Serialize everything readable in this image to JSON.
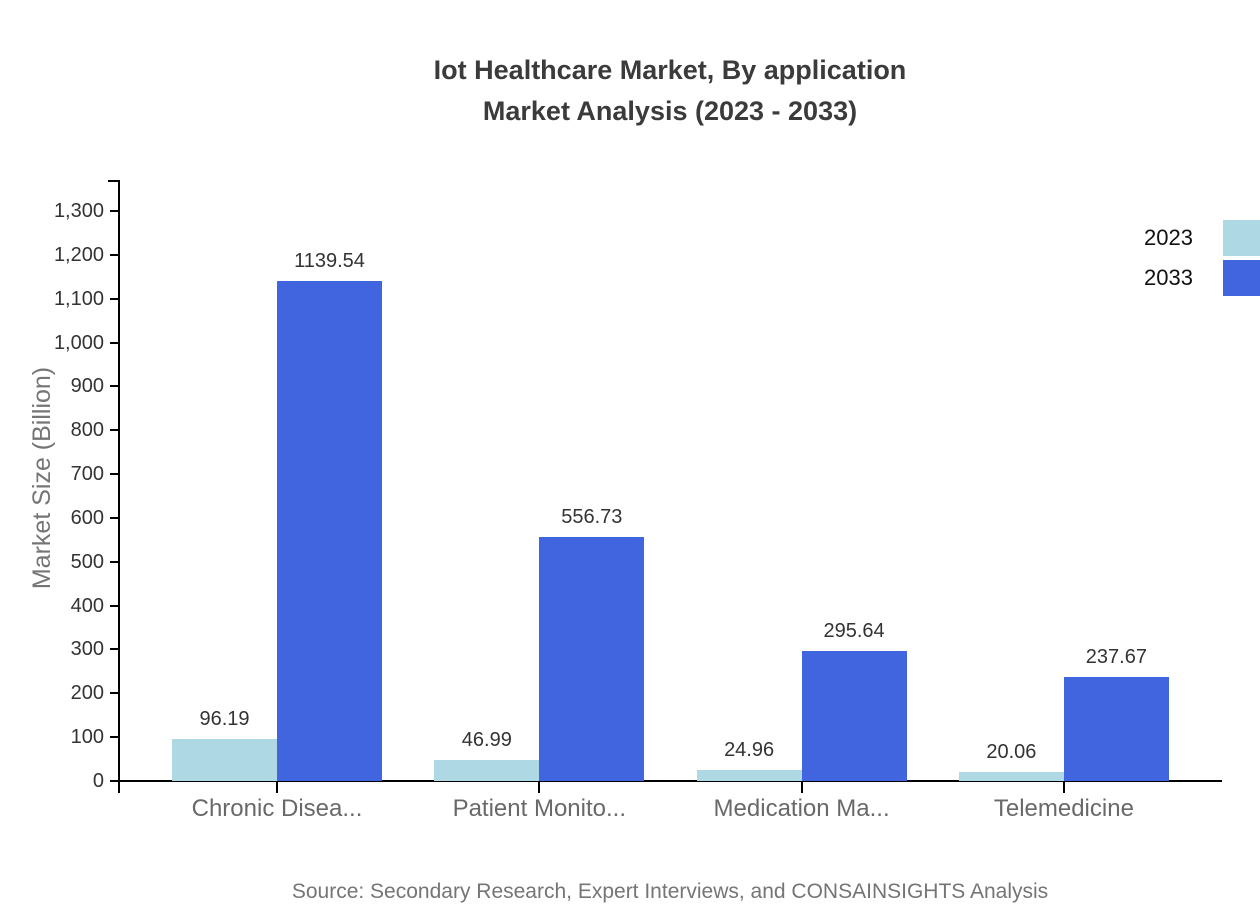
{
  "chart_data": {
    "type": "bar",
    "title_line1": "Iot Healthcare Market, By application",
    "title_line2": "Market Analysis (2023 - 2033)",
    "ylabel": "Market Size (Billion)",
    "categories": [
      "Chronic Disea...",
      "Patient Monito...",
      "Medication Ma...",
      "Telemedicine"
    ],
    "series": [
      {
        "name": "2023",
        "color": "#ADD8E4",
        "values": [
          96.19,
          46.99,
          24.96,
          20.06
        ],
        "value_labels": [
          "96.19",
          "46.99",
          "24.96",
          "20.06"
        ]
      },
      {
        "name": "2033",
        "color": "#4164DF",
        "values": [
          1139.54,
          556.73,
          295.64,
          237.67
        ],
        "value_labels": [
          "1139.54",
          "556.73",
          "295.64",
          "237.67"
        ]
      }
    ],
    "ylim": [
      0,
      1300
    ],
    "ytick_step": 100,
    "ytick_labels": [
      "0",
      "100",
      "200",
      "300",
      "400",
      "500",
      "600",
      "700",
      "800",
      "900",
      "1,000",
      "1,100",
      "1,200",
      "1,300"
    ],
    "grid": false,
    "legend_position": "top-right",
    "source": "Source: Secondary Research, Expert Interviews, and CONSAINSIGHTS Analysis"
  }
}
